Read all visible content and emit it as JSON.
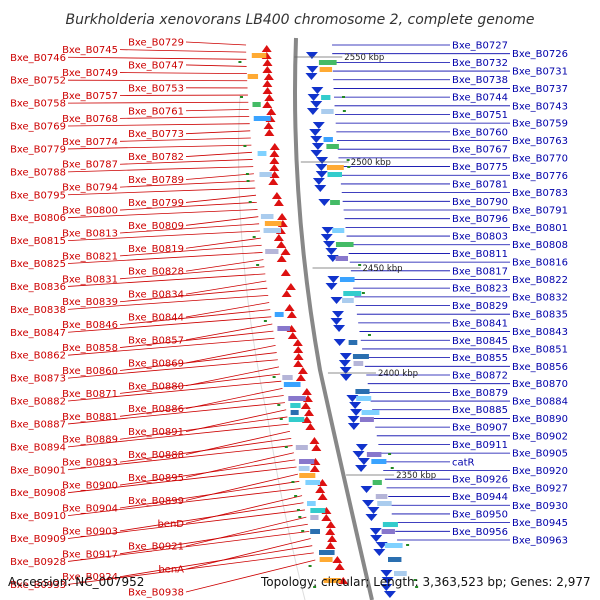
{
  "title": "Burkholderia xenovorans LB400 chromosome 2, complete genome",
  "footer": {
    "accession": "Accession: NC_007952",
    "summary": "Topology: circular; Length: 3,363,523 bp; Genes: 2,977"
  },
  "colors": {
    "left_strand": "#dd1111",
    "right_strand": "#1133cc",
    "backbone": "#888888",
    "left_label": "#cc0000",
    "right_label": "#0000aa"
  },
  "kbp_marks": [
    "2550 kbp",
    "2500 kbp",
    "2450 kbp",
    "2400 kbp",
    "2350 kbp"
  ],
  "left_labels": [
    "Bxe_B0729",
    "Bxe_B0745",
    "Bxe_B0746",
    "Bxe_B0747",
    "Bxe_B0749",
    "Bxe_B0752",
    "Bxe_B0753",
    "Bxe_B0757",
    "Bxe_B0758",
    "Bxe_B0761",
    "Bxe_B0768",
    "Bxe_B0769",
    "Bxe_B0773",
    "Bxe_B0774",
    "Bxe_B0779",
    "Bxe_B0782",
    "Bxe_B0787",
    "Bxe_B0788",
    "Bxe_B0789",
    "Bxe_B0794",
    "Bxe_B0795",
    "Bxe_B0799",
    "Bxe_B0800",
    "Bxe_B0806",
    "Bxe_B0809",
    "Bxe_B0813",
    "Bxe_B0815",
    "Bxe_B0819",
    "Bxe_B0821",
    "Bxe_B0825",
    "Bxe_B0828",
    "Bxe_B0831",
    "Bxe_B0836",
    "Bxe_B0834",
    "Bxe_B0839",
    "Bxe_B0838",
    "Bxe_B0844",
    "Bxe_B0846",
    "Bxe_B0847",
    "Bxe_B0857",
    "Bxe_B0858",
    "Bxe_B0862",
    "Bxe_B0869",
    "Bxe_B0860",
    "Bxe_B0873",
    "Bxe_B0880",
    "Bxe_B0871",
    "Bxe_B0882",
    "Bxe_B0886",
    "Bxe_B0881",
    "Bxe_B0887",
    "Bxe_B0891",
    "Bxe_B0889",
    "Bxe_B0894",
    "Bxe_B0888",
    "Bxe_B0893",
    "Bxe_B0901",
    "Bxe_B0895",
    "Bxe_B0900",
    "Bxe_B0908",
    "Bxe_B0899",
    "Bxe_B0904",
    "Bxe_B0910",
    "benD",
    "Bxe_B0903",
    "Bxe_B0909",
    "Bxe_B0921",
    "Bxe_B0917",
    "Bxe_B0928",
    "benA",
    "Bxe_B0924",
    "Bxe_B0933",
    "Bxe_B0938"
  ],
  "right_labels": [
    "Bxe_B0727",
    "Bxe_B0726",
    "Bxe_B0732",
    "Bxe_B0731",
    "Bxe_B0738",
    "Bxe_B0737",
    "Bxe_B0744",
    "Bxe_B0743",
    "Bxe_B0751",
    "Bxe_B0759",
    "Bxe_B0760",
    "Bxe_B0763",
    "Bxe_B0767",
    "Bxe_B0770",
    "Bxe_B0775",
    "Bxe_B0776",
    "Bxe_B0781",
    "Bxe_B0783",
    "Bxe_B0790",
    "Bxe_B0791",
    "Bxe_B0796",
    "Bxe_B0801",
    "Bxe_B0803",
    "Bxe_B0808",
    "Bxe_B0811",
    "Bxe_B0816",
    "Bxe_B0817",
    "Bxe_B0822",
    "Bxe_B0823",
    "Bxe_B0832",
    "Bxe_B0829",
    "Bxe_B0835",
    "Bxe_B0841",
    "Bxe_B0843",
    "Bxe_B0845",
    "Bxe_B0851",
    "Bxe_B0855",
    "Bxe_B0856",
    "Bxe_B0872",
    "Bxe_B0870",
    "Bxe_B0879",
    "Bxe_B0884",
    "Bxe_B0885",
    "Bxe_B0890",
    "Bxe_B0907",
    "Bxe_B0902",
    "Bxe_B0911",
    "Bxe_B0905",
    "catR",
    "Bxe_B0920",
    "Bxe_B0926",
    "Bxe_B0927",
    "Bxe_B0944",
    "Bxe_B0930",
    "Bxe_B0950",
    "Bxe_B0945",
    "Bxe_B0956",
    "Bxe_B0963"
  ]
}
